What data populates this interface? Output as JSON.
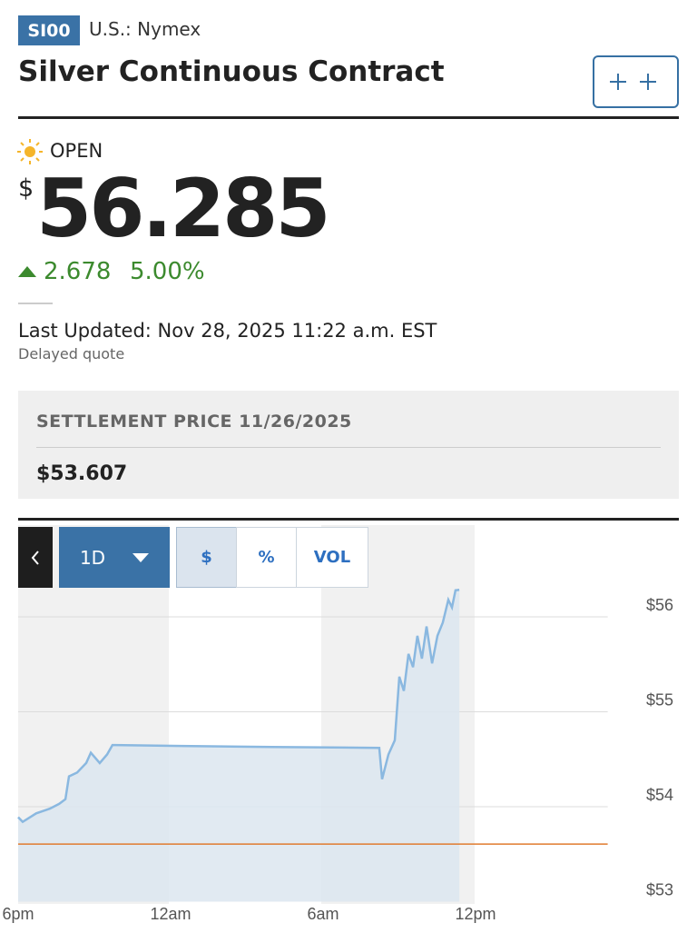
{
  "header": {
    "symbol": "SI00",
    "exchange": "U.S.: Nymex",
    "title": "Silver Continuous Contract"
  },
  "quote": {
    "status": "OPEN",
    "currency": "$",
    "price": "56.285",
    "change": "2.678",
    "change_percent": "5.00%",
    "last_updated": "Last Updated: Nov 28, 2025 11:22 a.m. EST",
    "note": "Delayed quote"
  },
  "settlement": {
    "label": "SETTLEMENT PRICE 11/26/2025",
    "price": "$53.607"
  },
  "chart_controls": {
    "range": "1D",
    "options": [
      "$",
      "%",
      "VOL"
    ]
  },
  "chart_data": {
    "type": "area",
    "x": [
      0,
      0.18,
      0.71,
      1.25,
      1.61,
      1.86,
      2.0,
      2.32,
      2.68,
      2.86,
      3.21,
      3.5,
      3.71,
      6.43,
      10,
      14.21,
      14.32,
      14.57,
      14.82,
      15.0,
      15.18,
      15.36,
      15.54,
      15.71,
      15.89,
      16.07,
      16.29,
      16.5,
      16.71,
      16.93,
      17.07,
      17.21,
      17.36
    ],
    "values": [
      53.89,
      53.84,
      53.93,
      53.98,
      54.03,
      54.08,
      54.32,
      54.36,
      54.46,
      54.57,
      54.46,
      54.55,
      54.65,
      54.64,
      54.63,
      54.62,
      54.29,
      54.55,
      54.7,
      55.37,
      55.22,
      55.61,
      55.47,
      55.8,
      55.56,
      55.9,
      55.51,
      55.8,
      55.94,
      56.18,
      56.1,
      56.28,
      56.285
    ],
    "xlim": [
      0,
      23.2
    ],
    "ylim": [
      53,
      56.32
    ],
    "xticks": [
      {
        "value": 0,
        "label": "6pm"
      },
      {
        "value": 6,
        "label": "12am"
      },
      {
        "value": 12,
        "label": "6am"
      },
      {
        "value": 18,
        "label": "12pm"
      }
    ],
    "yticks": [
      {
        "value": 53,
        "label": "$53"
      },
      {
        "value": 54,
        "label": "$54"
      },
      {
        "value": 55,
        "label": "$55"
      },
      {
        "value": 56,
        "label": "$56"
      }
    ],
    "grid": true,
    "color": "#8ab8e0",
    "fill_color": "#dce6f0",
    "settlement_line": 53.607,
    "settlement_color": "#e07b2f"
  }
}
